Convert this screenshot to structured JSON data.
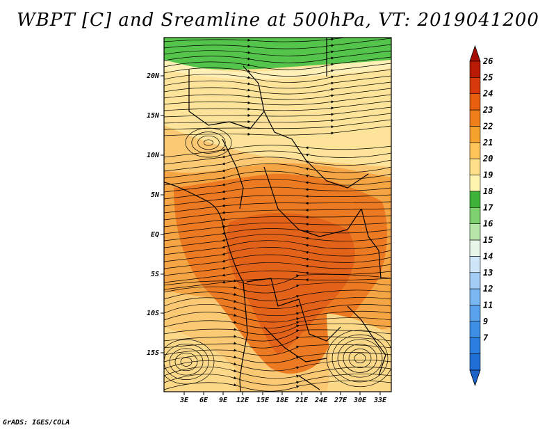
{
  "title": "WBPT [C] and Sreamline at 500hPa, VT: 2019041200",
  "footer": "GrADS: IGES/COLA",
  "map": {
    "lat_labels": [
      "20N",
      "15N",
      "10N",
      "5N",
      "EQ",
      "5S",
      "10S",
      "15S"
    ],
    "lon_labels": [
      "3E",
      "6E",
      "9E",
      "12E",
      "15E",
      "18E",
      "21E",
      "24E",
      "27E",
      "30E",
      "33E"
    ]
  },
  "colorbar": {
    "labels": [
      "7",
      "9",
      "11",
      "12",
      "13",
      "14",
      "15",
      "16",
      "17",
      "18",
      "19",
      "20",
      "21",
      "22",
      "23",
      "24",
      "25",
      "26"
    ],
    "colors": [
      "#1f6fd6",
      "#2a7fe0",
      "#3d8fe6",
      "#5aa2ec",
      "#7bb8f2",
      "#a3cdf5",
      "#cfe6f8",
      "#e8f6ea",
      "#b7e6a8",
      "#7fd06f",
      "#3fb23a",
      "#fff4b0",
      "#ffe08a",
      "#ffc45a",
      "#f6a22e",
      "#ef7f1a",
      "#e85f10",
      "#d63a0c",
      "#b81a06"
    ],
    "over_color": "#a30d02",
    "under_color": "#1e63c8"
  }
}
